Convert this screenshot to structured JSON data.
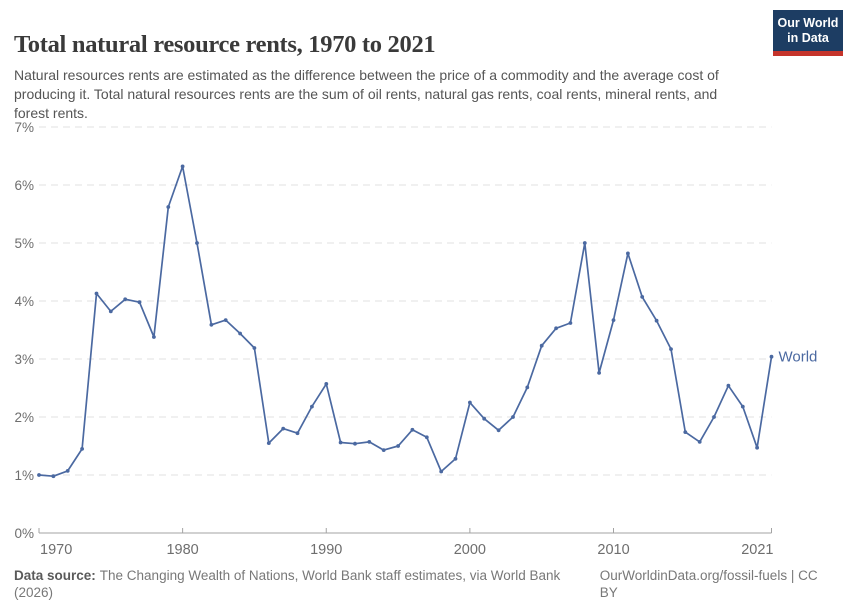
{
  "header": {
    "title": "Total natural resource rents, 1970 to 2021",
    "subtitle": "Natural resources rents are estimated as the difference between the price of a commodity and the average cost of producing it. Total natural resources rents are the sum of oil rents, natural gas rents, coal rents, mineral rents, and forest rents.",
    "logo": {
      "line1": "Our World",
      "line2": "in Data"
    }
  },
  "chart_data": {
    "type": "line",
    "title": "Total natural resource rents, 1970 to 2021",
    "xlabel": "",
    "ylabel": "",
    "unit": "%",
    "x": [
      1970,
      1971,
      1972,
      1973,
      1974,
      1975,
      1976,
      1977,
      1978,
      1979,
      1980,
      1981,
      1982,
      1983,
      1984,
      1985,
      1986,
      1987,
      1988,
      1989,
      1990,
      1991,
      1992,
      1993,
      1994,
      1995,
      1996,
      1997,
      1998,
      1999,
      2000,
      2001,
      2002,
      2003,
      2004,
      2005,
      2006,
      2007,
      2008,
      2009,
      2010,
      2011,
      2012,
      2013,
      2014,
      2015,
      2016,
      2017,
      2018,
      2019,
      2020,
      2021
    ],
    "series": [
      {
        "name": "World",
        "color": "#4b69a1",
        "values": [
          1.0,
          0.98,
          1.07,
          1.45,
          4.13,
          3.82,
          4.03,
          3.98,
          3.38,
          5.62,
          6.32,
          5.0,
          3.59,
          3.67,
          3.44,
          3.19,
          1.55,
          1.8,
          1.72,
          2.18,
          2.57,
          1.56,
          1.54,
          1.57,
          1.43,
          1.5,
          1.78,
          1.65,
          1.06,
          1.28,
          2.25,
          1.97,
          1.77,
          2.0,
          2.51,
          3.23,
          3.53,
          3.62,
          5.0,
          2.76,
          3.67,
          4.82,
          4.07,
          3.66,
          3.17,
          1.74,
          1.57,
          2.0,
          2.54,
          2.18,
          1.47,
          3.04
        ]
      }
    ],
    "xlim": [
      1970,
      2021
    ],
    "ylim": [
      0,
      7
    ],
    "yticks": [
      0,
      1,
      2,
      3,
      4,
      5,
      6,
      7
    ],
    "ytick_labels": [
      "0%",
      "1%",
      "2%",
      "3%",
      "4%",
      "5%",
      "6%",
      "7%"
    ],
    "xticks": [
      1970,
      1980,
      1990,
      2000,
      2010,
      2021
    ],
    "grid": "horizontal-dashed",
    "legend_position": "line-end-label",
    "end_label": "World"
  },
  "footer": {
    "source_label": "Data source:",
    "source_text": "The Changing Wealth of Nations, World Bank staff estimates, via World Bank (2026)",
    "credit": "OurWorldinData.org/fossil-fuels | CC BY"
  },
  "colors": {
    "line": "#4b69a1",
    "grid": "#e2e2e2",
    "axis": "#a3a3a3",
    "tick_text": "#6e6e6e",
    "title_text": "#3a3a3a",
    "subtitle_text": "#555555",
    "footer_text": "#787878",
    "logo_bg": "#1d3d63",
    "logo_accent": "#c5342b",
    "background": "#ffffff"
  }
}
